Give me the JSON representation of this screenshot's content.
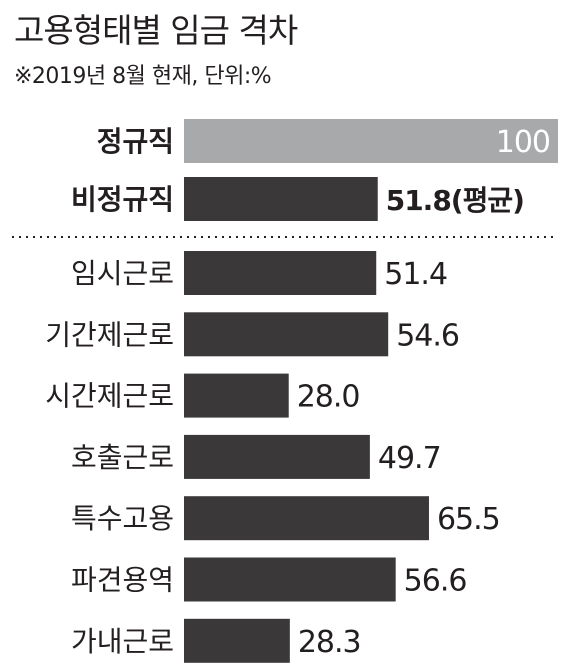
{
  "title": "고용형태별 임금 격차",
  "subtitle": "※2019년 8월 현재, 단위:%",
  "chart_data": {
    "type": "bar",
    "orientation": "horizontal",
    "xlim": [
      0,
      100
    ],
    "colors": {
      "reference": "#a8a9ab",
      "bar": "#3a3839",
      "text": "#231f20",
      "reference_text": "#ffffff"
    },
    "summary": [
      {
        "category": "정규직",
        "value": 100,
        "label": "100"
      },
      {
        "category": "비정규직",
        "value": 51.8,
        "label": "51.8(평균)"
      }
    ],
    "categories": [
      "임시근로",
      "기간제근로",
      "시간제근로",
      "호출근로",
      "특수고용",
      "파견용역",
      "가내근로"
    ],
    "values": [
      51.4,
      54.6,
      28.0,
      49.7,
      65.5,
      56.6,
      28.3
    ],
    "labels": [
      "51.4",
      "54.6",
      "28.0",
      "49.7",
      "65.5",
      "56.6",
      "28.3"
    ]
  }
}
